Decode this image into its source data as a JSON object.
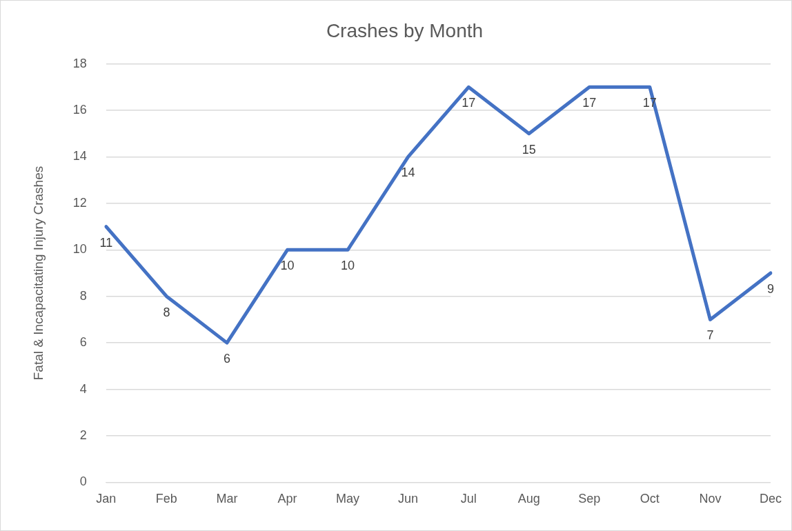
{
  "chart_data": {
    "type": "line",
    "title": "Crashes by Month",
    "ylabel": "Fatal & Incapacitating Injury Crashes",
    "categories": [
      "Jan",
      "Feb",
      "Mar",
      "Apr",
      "May",
      "Jun",
      "Jul",
      "Aug",
      "Sep",
      "Oct",
      "Nov",
      "Dec"
    ],
    "series": [
      {
        "color": "#4472c4",
        "values": [
          11,
          8,
          6,
          10,
          10,
          14,
          17,
          15,
          17,
          17,
          7,
          9
        ]
      }
    ],
    "ylim": [
      0,
      18
    ],
    "yticks": [
      0,
      2,
      4,
      6,
      8,
      10,
      12,
      14,
      16,
      18
    ],
    "grid": "y",
    "legend": false,
    "marker": "none",
    "line_style": "solid",
    "data_labels": true
  }
}
